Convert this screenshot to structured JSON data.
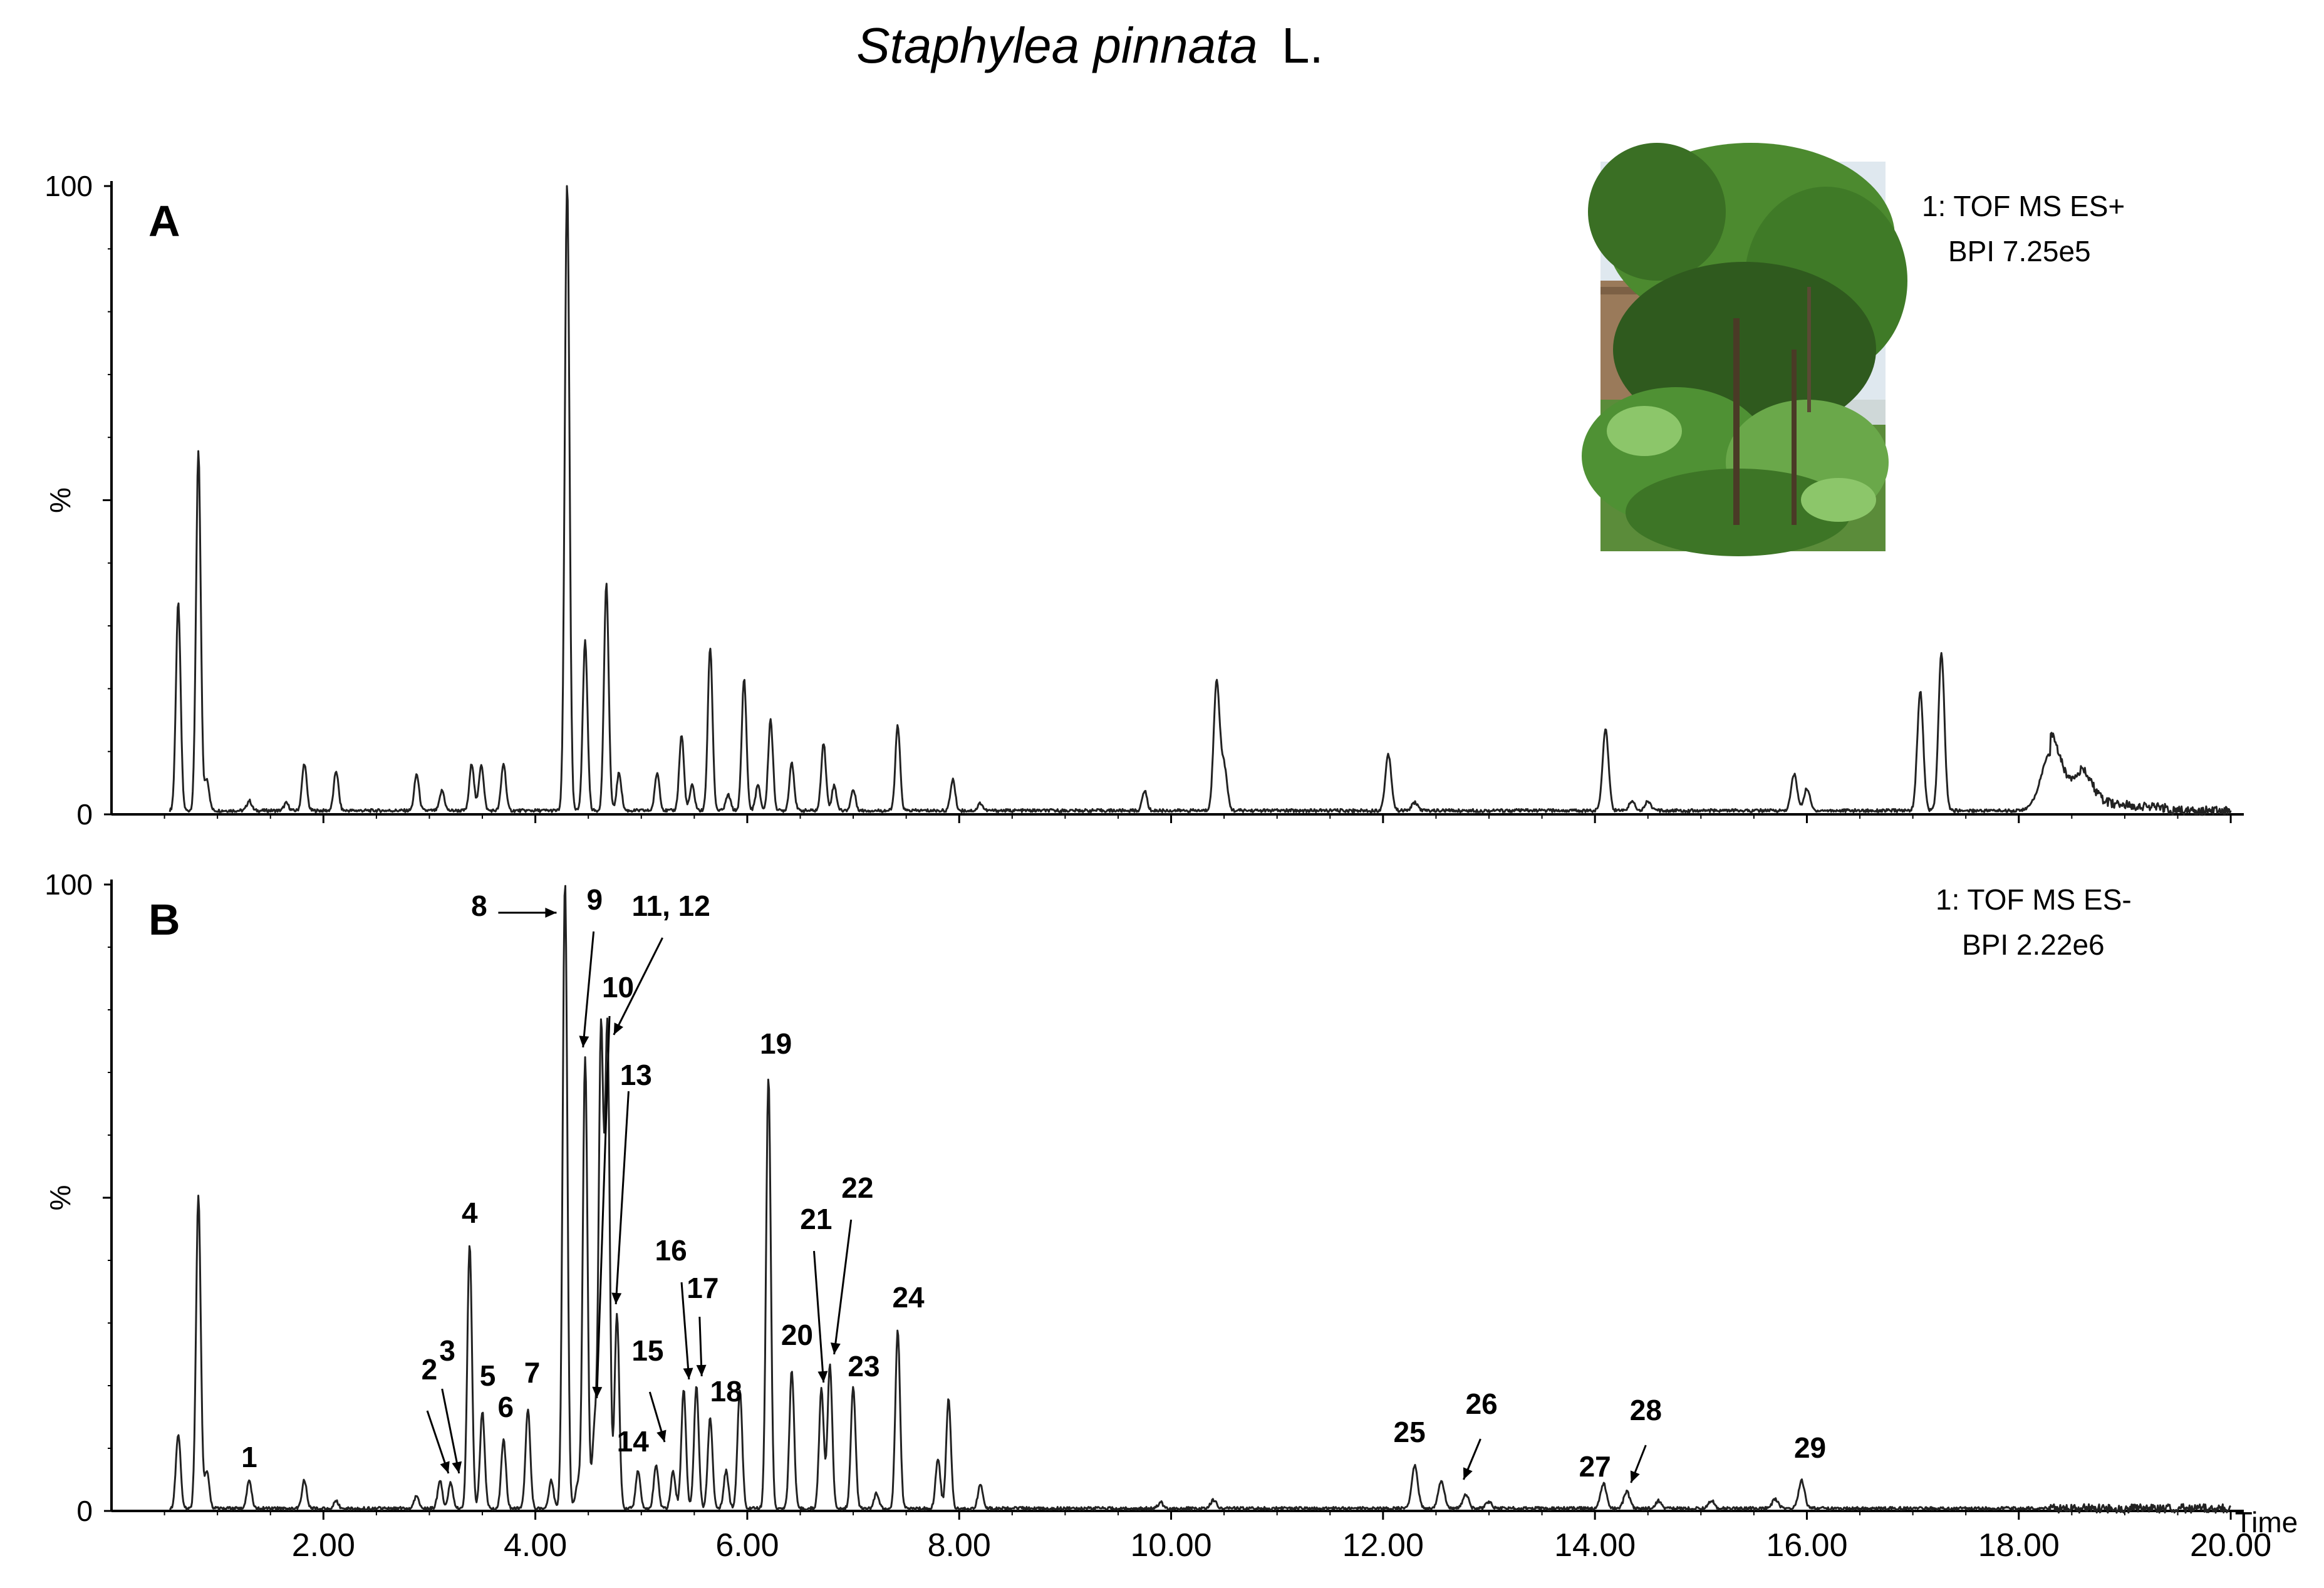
{
  "chart_data": [
    {
      "type": "line",
      "panel": "A",
      "title": "Staphylea pinnata L.",
      "title_species": "Staphylea pinnata",
      "title_author": "L.",
      "ylabel": "%",
      "xlabel": "Time",
      "xlim": [
        0,
        20.1
      ],
      "ylim": [
        0,
        100
      ],
      "yticks": [
        "0",
        "100"
      ],
      "annotation_lines": [
        "1: TOF MS ES+",
        "BPI  7.25e5"
      ],
      "photo_caption": "",
      "baseline": 0.6,
      "peaks": [
        {
          "x": 0.63,
          "y": 33
        },
        {
          "x": 0.82,
          "y": 57
        },
        {
          "x": 0.9,
          "y": 5
        },
        {
          "x": 1.3,
          "y": 1.6
        },
        {
          "x": 1.65,
          "y": 1.2
        },
        {
          "x": 1.82,
          "y": 7.5
        },
        {
          "x": 2.12,
          "y": 6.3
        },
        {
          "x": 2.88,
          "y": 5.8
        },
        {
          "x": 3.12,
          "y": 3.2
        },
        {
          "x": 3.4,
          "y": 7.5
        },
        {
          "x": 3.49,
          "y": 7.4
        },
        {
          "x": 3.7,
          "y": 7.5
        },
        {
          "x": 4.3,
          "y": 100
        },
        {
          "x": 4.47,
          "y": 27
        },
        {
          "x": 4.67,
          "y": 36
        },
        {
          "x": 4.79,
          "y": 6
        },
        {
          "x": 5.15,
          "y": 6
        },
        {
          "x": 5.38,
          "y": 12
        },
        {
          "x": 5.48,
          "y": 4
        },
        {
          "x": 5.65,
          "y": 26
        },
        {
          "x": 5.82,
          "y": 2.5
        },
        {
          "x": 5.97,
          "y": 21
        },
        {
          "x": 6.1,
          "y": 4
        },
        {
          "x": 6.22,
          "y": 14.5
        },
        {
          "x": 6.42,
          "y": 7.7
        },
        {
          "x": 6.72,
          "y": 10.8
        },
        {
          "x": 6.82,
          "y": 4
        },
        {
          "x": 7.0,
          "y": 3.3
        },
        {
          "x": 7.42,
          "y": 13.5
        },
        {
          "x": 7.94,
          "y": 5
        },
        {
          "x": 8.2,
          "y": 1.2
        },
        {
          "x": 9.75,
          "y": 3.2
        },
        {
          "x": 10.43,
          "y": 20.5
        },
        {
          "x": 10.5,
          "y": 7
        },
        {
          "x": 12.05,
          "y": 9
        },
        {
          "x": 12.3,
          "y": 1.3
        },
        {
          "x": 14.1,
          "y": 13
        },
        {
          "x": 14.35,
          "y": 1.5
        },
        {
          "x": 14.5,
          "y": 1.5
        },
        {
          "x": 15.88,
          "y": 5.8
        },
        {
          "x": 16.0,
          "y": 3.5
        },
        {
          "x": 17.07,
          "y": 19
        },
        {
          "x": 17.27,
          "y": 25
        },
        {
          "x": 18.3,
          "y": 9
        },
        {
          "x": 18.6,
          "y": 4.5
        }
      ]
    },
    {
      "type": "line",
      "panel": "B",
      "ylabel": "%",
      "xlabel": "Time",
      "xlim": [
        0,
        20.1
      ],
      "ylim": [
        0,
        100
      ],
      "yticks": [
        "0",
        "100"
      ],
      "xticks": [
        "2.00",
        "4.00",
        "6.00",
        "8.00",
        "10.00",
        "12.00",
        "14.00",
        "16.00",
        "18.00",
        "20.00"
      ],
      "xtick_values": [
        2,
        4,
        6,
        8,
        10,
        12,
        14,
        16,
        18,
        20
      ],
      "annotation_lines": [
        "1: TOF MS ES-",
        "BPI  2.22e6"
      ],
      "baseline": 0.4,
      "peaks": [
        {
          "x": 0.63,
          "y": 12
        },
        {
          "x": 0.82,
          "y": 50
        },
        {
          "x": 0.9,
          "y": 6
        },
        {
          "x": 1.3,
          "y": 4.5
        },
        {
          "x": 1.82,
          "y": 4.5
        },
        {
          "x": 2.12,
          "y": 1.2
        },
        {
          "x": 2.88,
          "y": 2.2
        },
        {
          "x": 3.1,
          "y": 4.5
        },
        {
          "x": 3.2,
          "y": 4
        },
        {
          "x": 3.38,
          "y": 42
        },
        {
          "x": 3.5,
          "y": 15.5
        },
        {
          "x": 3.7,
          "y": 11
        },
        {
          "x": 3.93,
          "y": 16
        },
        {
          "x": 4.15,
          "y": 4.5
        },
        {
          "x": 4.28,
          "y": 100
        },
        {
          "x": 4.4,
          "y": 4
        },
        {
          "x": 4.47,
          "y": 72
        },
        {
          "x": 4.56,
          "y": 13
        },
        {
          "x": 4.62,
          "y": 76
        },
        {
          "x": 4.68,
          "y": 76
        },
        {
          "x": 4.77,
          "y": 31
        },
        {
          "x": 4.97,
          "y": 6
        },
        {
          "x": 5.14,
          "y": 7
        },
        {
          "x": 5.3,
          "y": 6
        },
        {
          "x": 5.4,
          "y": 19
        },
        {
          "x": 5.52,
          "y": 19.5
        },
        {
          "x": 5.65,
          "y": 14.5
        },
        {
          "x": 5.8,
          "y": 6
        },
        {
          "x": 5.93,
          "y": 19
        },
        {
          "x": 6.2,
          "y": 69
        },
        {
          "x": 6.42,
          "y": 22
        },
        {
          "x": 6.7,
          "y": 19
        },
        {
          "x": 6.78,
          "y": 23
        },
        {
          "x": 7.0,
          "y": 19.5
        },
        {
          "x": 7.22,
          "y": 2.5
        },
        {
          "x": 7.42,
          "y": 28.5
        },
        {
          "x": 7.8,
          "y": 8
        },
        {
          "x": 7.9,
          "y": 17.5
        },
        {
          "x": 8.2,
          "y": 4
        },
        {
          "x": 9.9,
          "y": 1
        },
        {
          "x": 10.4,
          "y": 1.3
        },
        {
          "x": 12.3,
          "y": 7
        },
        {
          "x": 12.55,
          "y": 4.5
        },
        {
          "x": 12.78,
          "y": 2.2
        },
        {
          "x": 13.0,
          "y": 1
        },
        {
          "x": 14.08,
          "y": 4
        },
        {
          "x": 14.3,
          "y": 2.7
        },
        {
          "x": 14.6,
          "y": 1.2
        },
        {
          "x": 15.1,
          "y": 1.2
        },
        {
          "x": 15.7,
          "y": 1.5
        },
        {
          "x": 15.95,
          "y": 4.5
        }
      ],
      "peak_labels": [
        {
          "text": "1",
          "x": 1.3,
          "y": 7
        },
        {
          "text": "2",
          "x": 3.0,
          "y": 21
        },
        {
          "text": "3",
          "x": 3.17,
          "y": 24
        },
        {
          "text": "4",
          "x": 3.38,
          "y": 46
        },
        {
          "text": "5",
          "x": 3.55,
          "y": 20
        },
        {
          "text": "6",
          "x": 3.72,
          "y": 15
        },
        {
          "text": "7",
          "x": 3.97,
          "y": 20.5
        },
        {
          "text": "8",
          "x": 3.47,
          "y": 95
        },
        {
          "text": "9",
          "x": 4.56,
          "y": 96
        },
        {
          "text": "10",
          "x": 4.78,
          "y": 82
        },
        {
          "text": "11, 12",
          "x": 5.28,
          "y": 95
        },
        {
          "text": "13",
          "x": 4.95,
          "y": 68
        },
        {
          "text": "14",
          "x": 4.92,
          "y": 9.5
        },
        {
          "text": "15",
          "x": 5.06,
          "y": 24
        },
        {
          "text": "16",
          "x": 5.28,
          "y": 40
        },
        {
          "text": "17",
          "x": 5.58,
          "y": 34
        },
        {
          "text": "18",
          "x": 5.8,
          "y": 17.5
        },
        {
          "text": "19",
          "x": 6.27,
          "y": 73
        },
        {
          "text": "20",
          "x": 6.47,
          "y": 26.5
        },
        {
          "text": "21",
          "x": 6.65,
          "y": 45
        },
        {
          "text": "22",
          "x": 7.04,
          "y": 50
        },
        {
          "text": "23",
          "x": 7.1,
          "y": 21.5
        },
        {
          "text": "24",
          "x": 7.52,
          "y": 32.5
        },
        {
          "text": "25",
          "x": 12.25,
          "y": 11
        },
        {
          "text": "26",
          "x": 12.93,
          "y": 15.5
        },
        {
          "text": "27",
          "x": 14.0,
          "y": 5.5
        },
        {
          "text": "28",
          "x": 14.48,
          "y": 14.5
        },
        {
          "text": "29",
          "x": 16.03,
          "y": 8.5
        }
      ],
      "arrows": [
        {
          "from": [
            3.65,
            95.5
          ],
          "to": [
            4.2,
            95.5
          ]
        },
        {
          "from": [
            4.55,
            92.5
          ],
          "to": [
            4.45,
            74
          ]
        },
        {
          "from": [
            4.7,
            79
          ],
          "to": [
            4.58,
            18
          ]
        },
        {
          "from": [
            5.2,
            91.5
          ],
          "to": [
            4.74,
            76
          ]
        },
        {
          "from": [
            4.88,
            67
          ],
          "to": [
            4.76,
            33
          ]
        },
        {
          "from": [
            2.98,
            16
          ],
          "to": [
            3.18,
            6
          ]
        },
        {
          "from": [
            3.12,
            19.5
          ],
          "to": [
            3.28,
            6
          ]
        },
        {
          "from": [
            5.08,
            19
          ],
          "to": [
            5.22,
            11
          ]
        },
        {
          "from": [
            5.38,
            36.5
          ],
          "to": [
            5.45,
            21
          ]
        },
        {
          "from": [
            5.55,
            31
          ],
          "to": [
            5.57,
            21.5
          ]
        },
        {
          "from": [
            6.63,
            41.5
          ],
          "to": [
            6.72,
            20.5
          ]
        },
        {
          "from": [
            6.98,
            46.5
          ],
          "to": [
            6.82,
            25
          ]
        },
        {
          "from": [
            12.92,
            11.5
          ],
          "to": [
            12.76,
            5
          ]
        },
        {
          "from": [
            14.48,
            10.5
          ],
          "to": [
            14.34,
            4.5
          ]
        }
      ]
    }
  ],
  "photo": {
    "description_icon": "plant-photo",
    "colors": {
      "sky": "#dfe8ef",
      "wall": "#9a7a5a",
      "foliage_dark": "#2f5a1e",
      "foliage": "#4c8a2f",
      "grass": "#5b8c3a"
    }
  }
}
